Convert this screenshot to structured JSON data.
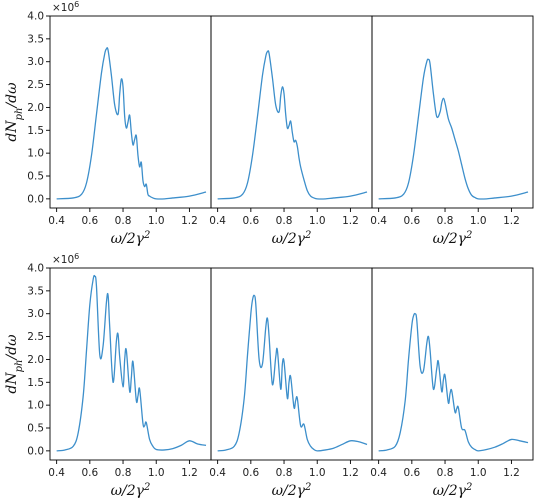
{
  "style": {
    "line_color": "#3d8fcb"
  },
  "chart_data": {
    "type": "line",
    "rows": [
      {
        "ylabel": "dN_ph/dω",
        "offset_text": "×10",
        "offset_exp": "6",
        "ylim": [
          -0.2,
          4.0
        ],
        "yticks": [
          0.0,
          0.5,
          1.0,
          1.5,
          2.0,
          2.5,
          3.0,
          3.5,
          4.0
        ],
        "ytick_labels": [
          "0.0",
          "0.5",
          "1.0",
          "1.5",
          "2.0",
          "2.5",
          "3.0",
          "3.5",
          "4.0"
        ],
        "panels": [
          {
            "xlabel": "ω/2γ²",
            "xlim": [
              0.36,
              1.33
            ],
            "xticks": [
              0.4,
              0.6,
              0.8,
              1.0,
              1.2
            ],
            "xtick_labels": [
              "0.4",
              "0.6",
              "0.8",
              "1.0",
              "1.2"
            ],
            "x": [
              0.4,
              0.5,
              0.55,
              0.58,
              0.61,
              0.64,
              0.67,
              0.69,
              0.7,
              0.71,
              0.73,
              0.75,
              0.77,
              0.78,
              0.79,
              0.8,
              0.81,
              0.82,
              0.83,
              0.84,
              0.85,
              0.86,
              0.87,
              0.88,
              0.89,
              0.9,
              0.91,
              0.92,
              0.93,
              0.94,
              0.95,
              0.96,
              0.98,
              1.0,
              1.05,
              1.1,
              1.2,
              1.3
            ],
            "y": [
              0.0,
              0.02,
              0.1,
              0.35,
              0.95,
              1.85,
              2.75,
              3.18,
              3.28,
              3.25,
              2.7,
              2.05,
              1.85,
              2.3,
              2.62,
              2.45,
              1.8,
              1.55,
              1.68,
              1.83,
              1.45,
              1.18,
              1.3,
              1.38,
              0.95,
              0.7,
              0.8,
              0.4,
              0.27,
              0.32,
              0.1,
              0.06,
              0.02,
              0.0,
              0.0,
              0.02,
              0.06,
              0.15
            ]
          },
          {
            "xlabel": "ω/2γ²",
            "xlim": [
              0.36,
              1.33
            ],
            "xticks": [
              0.4,
              0.6,
              0.8,
              1.0,
              1.2
            ],
            "xtick_labels": [
              "0.4",
              "0.6",
              "0.8",
              "1.0",
              "1.2"
            ],
            "x": [
              0.4,
              0.5,
              0.55,
              0.58,
              0.61,
              0.64,
              0.67,
              0.69,
              0.7,
              0.71,
              0.73,
              0.75,
              0.77,
              0.78,
              0.79,
              0.8,
              0.81,
              0.82,
              0.83,
              0.84,
              0.85,
              0.86,
              0.87,
              0.88,
              0.89,
              0.9,
              0.92,
              0.94,
              0.96,
              0.98,
              1.0,
              1.05,
              1.1,
              1.2,
              1.3
            ],
            "y": [
              0.0,
              0.02,
              0.1,
              0.35,
              0.95,
              1.8,
              2.7,
              3.12,
              3.22,
              3.18,
              2.65,
              2.05,
              1.9,
              2.25,
              2.45,
              2.3,
              1.85,
              1.55,
              1.6,
              1.7,
              1.45,
              1.25,
              1.28,
              1.15,
              0.9,
              0.7,
              0.42,
              0.18,
              0.06,
              0.02,
              0.0,
              0.0,
              0.02,
              0.06,
              0.15
            ]
          },
          {
            "xlabel": "ω/2γ²",
            "xlim": [
              0.36,
              1.33
            ],
            "xticks": [
              0.4,
              0.6,
              0.8,
              1.0,
              1.2
            ],
            "xtick_labels": [
              "0.4",
              "0.6",
              "0.8",
              "1.0",
              "1.2"
            ],
            "x": [
              0.4,
              0.5,
              0.55,
              0.58,
              0.61,
              0.64,
              0.67,
              0.69,
              0.7,
              0.71,
              0.73,
              0.75,
              0.77,
              0.78,
              0.79,
              0.8,
              0.82,
              0.84,
              0.86,
              0.88,
              0.9,
              0.92,
              0.94,
              0.96,
              0.98,
              1.0,
              1.05,
              1.1,
              1.2,
              1.3
            ],
            "y": [
              0.0,
              0.02,
              0.1,
              0.35,
              0.95,
              1.8,
              2.65,
              3.0,
              3.05,
              2.95,
              2.3,
              1.8,
              1.9,
              2.1,
              2.2,
              2.1,
              1.75,
              1.55,
              1.3,
              1.05,
              0.75,
              0.45,
              0.22,
              0.08,
              0.03,
              0.0,
              0.0,
              0.02,
              0.06,
              0.15
            ]
          }
        ]
      },
      {
        "ylabel": "dN_ph/dω",
        "offset_text": "×10",
        "offset_exp": "6",
        "ylim": [
          -0.2,
          4.0
        ],
        "yticks": [
          0.0,
          0.5,
          1.0,
          1.5,
          2.0,
          2.5,
          3.0,
          3.5,
          4.0
        ],
        "ytick_labels": [
          "0.0",
          "0.5",
          "1.0",
          "1.5",
          "2.0",
          "2.5",
          "3.0",
          "3.5",
          "4.0"
        ],
        "panels": [
          {
            "xlabel": "ω/2γ²",
            "xlim": [
              0.36,
              1.33
            ],
            "xticks": [
              0.4,
              0.6,
              0.8,
              1.0,
              1.2
            ],
            "xtick_labels": [
              "0.4",
              "0.6",
              "0.8",
              "1.0",
              "1.2"
            ],
            "x": [
              0.4,
              0.45,
              0.5,
              0.53,
              0.56,
              0.58,
              0.6,
              0.62,
              0.63,
              0.64,
              0.66,
              0.68,
              0.7,
              0.71,
              0.72,
              0.74,
              0.76,
              0.77,
              0.78,
              0.8,
              0.81,
              0.82,
              0.84,
              0.85,
              0.86,
              0.88,
              0.89,
              0.9,
              0.92,
              0.93,
              0.94,
              0.96,
              0.98,
              1.0,
              1.05,
              1.1,
              1.15,
              1.2,
              1.25,
              1.3
            ],
            "y": [
              0.0,
              0.02,
              0.1,
              0.4,
              1.2,
              2.2,
              3.2,
              3.75,
              3.82,
              3.6,
              2.1,
              2.3,
              3.25,
              3.4,
              2.7,
              1.5,
              2.4,
              2.55,
              2.05,
              1.4,
              2.0,
              2.2,
              1.3,
              1.6,
              1.95,
              1.1,
              1.2,
              1.35,
              0.6,
              0.55,
              0.62,
              0.25,
              0.1,
              0.03,
              0.02,
              0.05,
              0.12,
              0.22,
              0.15,
              0.12
            ]
          },
          {
            "xlabel": "ω/2γ²",
            "xlim": [
              0.36,
              1.33
            ],
            "xticks": [
              0.4,
              0.6,
              0.8,
              1.0,
              1.2
            ],
            "xtick_labels": [
              "0.4",
              "0.6",
              "0.8",
              "1.0",
              "1.2"
            ],
            "x": [
              0.4,
              0.45,
              0.5,
              0.53,
              0.56,
              0.58,
              0.6,
              0.61,
              0.62,
              0.63,
              0.65,
              0.67,
              0.69,
              0.7,
              0.71,
              0.73,
              0.75,
              0.76,
              0.78,
              0.79,
              0.8,
              0.82,
              0.83,
              0.84,
              0.86,
              0.87,
              0.88,
              0.9,
              0.92,
              0.94,
              0.96,
              0.98,
              1.0,
              1.05,
              1.1,
              1.15,
              1.2,
              1.25,
              1.3
            ],
            "y": [
              0.0,
              0.02,
              0.1,
              0.4,
              1.15,
              2.1,
              3.0,
              3.3,
              3.4,
              3.2,
              2.0,
              1.9,
              2.7,
              2.9,
              2.5,
              1.45,
              2.05,
              2.2,
              1.35,
              1.9,
              1.95,
              1.15,
              1.5,
              1.62,
              0.95,
              1.1,
              1.15,
              0.55,
              0.58,
              0.25,
              0.1,
              0.03,
              0.0,
              0.02,
              0.06,
              0.14,
              0.22,
              0.2,
              0.14
            ]
          },
          {
            "xlabel": "ω/2γ²",
            "xlim": [
              0.36,
              1.33
            ],
            "xticks": [
              0.4,
              0.6,
              0.8,
              1.0,
              1.2
            ],
            "xtick_labels": [
              "0.4",
              "0.6",
              "0.8",
              "1.0",
              "1.2"
            ],
            "x": [
              0.4,
              0.45,
              0.5,
              0.53,
              0.56,
              0.58,
              0.6,
              0.61,
              0.62,
              0.63,
              0.65,
              0.67,
              0.69,
              0.7,
              0.71,
              0.73,
              0.75,
              0.76,
              0.78,
              0.79,
              0.8,
              0.82,
              0.83,
              0.84,
              0.86,
              0.87,
              0.88,
              0.9,
              0.92,
              0.94,
              0.96,
              0.98,
              1.0,
              1.05,
              1.1,
              1.15,
              1.2,
              1.25,
              1.3
            ],
            "y": [
              0.0,
              0.02,
              0.1,
              0.4,
              1.1,
              2.0,
              2.75,
              2.95,
              3.0,
              2.85,
              1.85,
              1.75,
              2.35,
              2.5,
              2.2,
              1.35,
              1.8,
              1.95,
              1.3,
              1.55,
              1.65,
              1.05,
              1.25,
              1.32,
              0.85,
              0.92,
              0.95,
              0.5,
              0.45,
              0.2,
              0.08,
              0.03,
              0.0,
              0.03,
              0.08,
              0.16,
              0.25,
              0.22,
              0.18
            ]
          }
        ]
      }
    ]
  }
}
